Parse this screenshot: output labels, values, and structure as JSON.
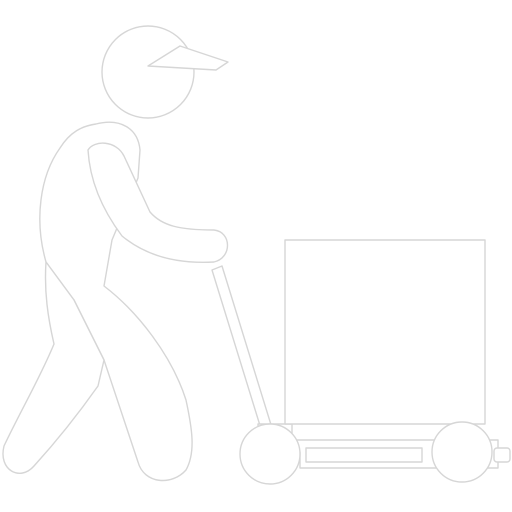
{
  "icon": {
    "name": "delivery-worker-pushing-hand-truck-icon",
    "fill_color": "#ffffff",
    "outline_color": "#d6d6d6",
    "background_color": "#ffffff"
  }
}
